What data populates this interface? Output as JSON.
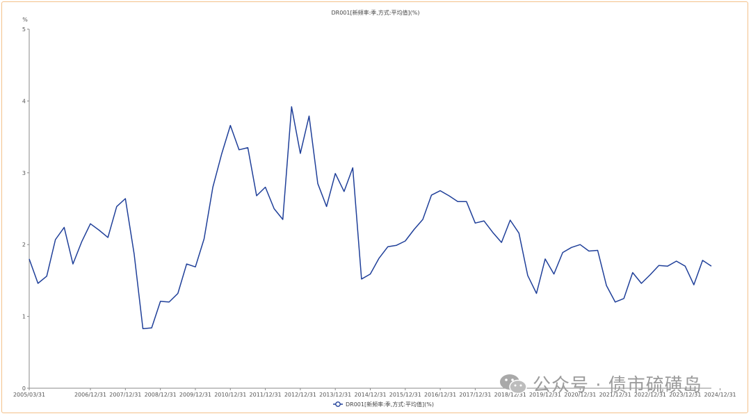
{
  "watermark": {
    "text": "公众号 · 债市硫磺岛",
    "icon": "wechat-icon"
  },
  "colors": {
    "line": "#1f3f99",
    "axis": "#888888",
    "frame": "#f3c089",
    "watermark": "#9b9b9b"
  },
  "chart_data": {
    "type": "line",
    "title": "DR001[新频率:季,方式:平均值](%)",
    "ylabel": "%",
    "xlabel": "",
    "ylim": [
      0,
      5
    ],
    "yticks": [
      "0",
      "1",
      "2",
      "3",
      "4",
      "5"
    ],
    "xticks": [
      "2005/03/31",
      "2006/12/31",
      "2007/12/31",
      "2008/12/31",
      "2009/12/31",
      "2010/12/31",
      "2011/12/31",
      "2012/12/31",
      "2013/12/31",
      "2014/12/31",
      "2015/12/31",
      "2016/12/31",
      "2017/12/31",
      "2018/12/31",
      "2019/12/31",
      "2020/12/31",
      "2021/12/31",
      "2022/12/31",
      "2023/12/31",
      "2024/12/31"
    ],
    "grid": false,
    "legend_position": "bottom-center",
    "series": [
      {
        "name": "DR001[新频率:季,方式:平均值](%)",
        "values": [
          1.8,
          1.46,
          1.56,
          2.07,
          2.24,
          1.73,
          2.04,
          2.29,
          2.2,
          2.1,
          2.53,
          2.64,
          1.87,
          0.83,
          0.84,
          1.21,
          1.2,
          1.32,
          1.73,
          1.69,
          2.08,
          2.8,
          3.26,
          3.66,
          3.32,
          3.35,
          2.68,
          2.8,
          2.5,
          2.35,
          3.92,
          3.27,
          3.79,
          2.85,
          2.53,
          2.99,
          2.74,
          3.07,
          1.52,
          1.59,
          1.81,
          1.97,
          1.99,
          2.05,
          2.21,
          2.35,
          2.69,
          2.75,
          2.68,
          2.6,
          2.6,
          2.3,
          2.33,
          2.17,
          2.03,
          2.34,
          2.16,
          1.57,
          1.32,
          1.8,
          1.59,
          1.89,
          1.96,
          2.0,
          1.91,
          1.92,
          1.43,
          1.2,
          1.25,
          1.61,
          1.46,
          1.58,
          1.71,
          1.7,
          1.77,
          1.7,
          1.44,
          1.78,
          1.7
        ]
      }
    ]
  }
}
